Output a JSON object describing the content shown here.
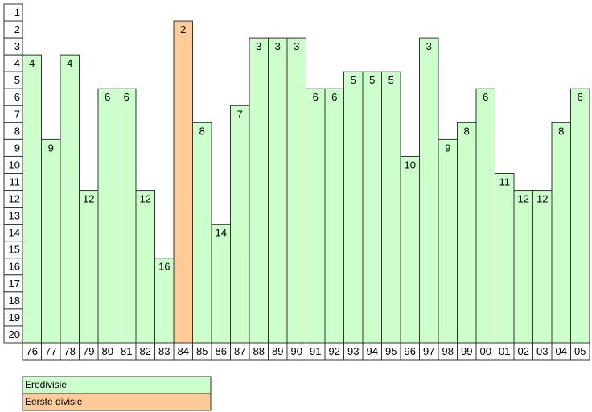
{
  "chart_data": {
    "type": "bar",
    "categories": [
      "76",
      "77",
      "78",
      "79",
      "80",
      "81",
      "82",
      "83",
      "84",
      "85",
      "86",
      "87",
      "88",
      "89",
      "90",
      "91",
      "92",
      "93",
      "94",
      "95",
      "96",
      "97",
      "98",
      "99",
      "00",
      "01",
      "02",
      "03",
      "04",
      "05"
    ],
    "series": [
      {
        "name": "Eredivisie",
        "color": "#ccffcc",
        "values": [
          4,
          9,
          4,
          12,
          6,
          6,
          12,
          16,
          null,
          8,
          14,
          7,
          3,
          3,
          3,
          6,
          6,
          5,
          5,
          5,
          10,
          3,
          9,
          8,
          6,
          11,
          12,
          12,
          8,
          6
        ]
      },
      {
        "name": "Eerste divisie",
        "color": "#ffcc99",
        "values": [
          null,
          null,
          null,
          null,
          null,
          null,
          null,
          null,
          2,
          null,
          null,
          null,
          null,
          null,
          null,
          null,
          null,
          null,
          null,
          null,
          null,
          null,
          null,
          null,
          null,
          null,
          null,
          null,
          null,
          null
        ]
      }
    ],
    "ylim": [
      20.5,
      0.5
    ],
    "yticks": [
      1,
      2,
      3,
      4,
      5,
      6,
      7,
      8,
      9,
      10,
      11,
      12,
      13,
      14,
      15,
      16,
      17,
      18,
      19,
      20
    ]
  }
}
